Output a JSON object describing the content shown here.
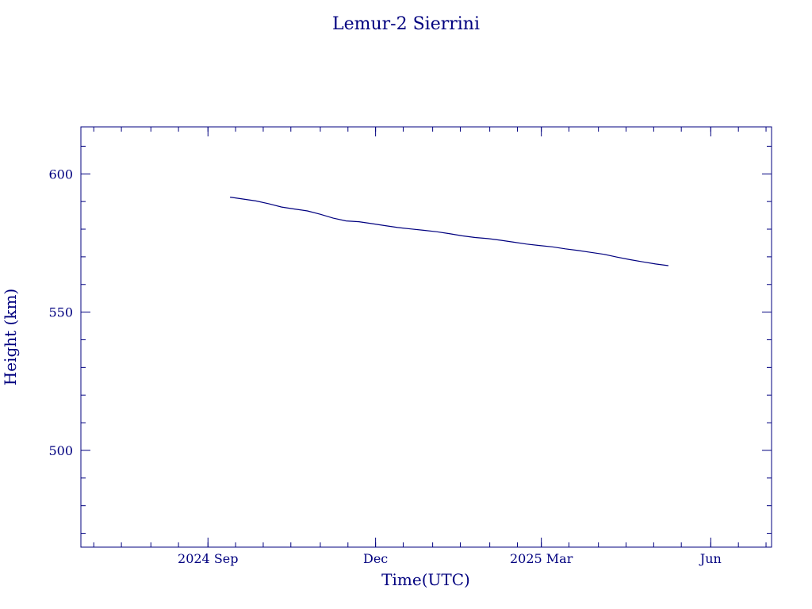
{
  "chart_data": {
    "type": "line",
    "title": "Lemur-2 Sierrini",
    "xlabel": "Time(UTC)",
    "ylabel": "Height (km)",
    "xlim": [
      "2024-06-24",
      "2025-07-04"
    ],
    "ylim": [
      465,
      617
    ],
    "x_ticks": [
      {
        "date": "2024-09-01",
        "label": "2024 Sep"
      },
      {
        "date": "2024-12-01",
        "label": "Dec"
      },
      {
        "date": "2025-03-01",
        "label": "2025 Mar"
      },
      {
        "date": "2025-06-01",
        "label": "Jun"
      }
    ],
    "y_ticks": [
      500,
      550,
      600
    ],
    "grid": false,
    "color": "#00007f",
    "series": [
      {
        "x": [
          "2024-09-13",
          "2024-09-20",
          "2024-09-27",
          "2024-10-04",
          "2024-10-11",
          "2024-10-18",
          "2024-10-25",
          "2024-11-01",
          "2024-11-08",
          "2024-11-15",
          "2024-11-22",
          "2024-11-29",
          "2024-12-06",
          "2024-12-13",
          "2024-12-20",
          "2024-12-27",
          "2025-01-03",
          "2025-01-10",
          "2025-01-17",
          "2025-01-24",
          "2025-01-31",
          "2025-02-07",
          "2025-02-14",
          "2025-02-21",
          "2025-02-28",
          "2025-03-07",
          "2025-03-14",
          "2025-03-21",
          "2025-03-28",
          "2025-04-04",
          "2025-04-11",
          "2025-04-18",
          "2025-04-25",
          "2025-05-02",
          "2025-05-09"
        ],
        "values": [
          591.6,
          590.9,
          590.2,
          589.2,
          588.0,
          587.3,
          586.6,
          585.4,
          584.0,
          583.0,
          582.7,
          582.0,
          581.3,
          580.6,
          580.1,
          579.6,
          579.1,
          578.4,
          577.6,
          577.0,
          576.6,
          576.0,
          575.3,
          574.6,
          574.1,
          573.6,
          572.9,
          572.3,
          571.6,
          570.9,
          569.9,
          569.0,
          568.2,
          567.4,
          566.8
        ]
      }
    ]
  }
}
